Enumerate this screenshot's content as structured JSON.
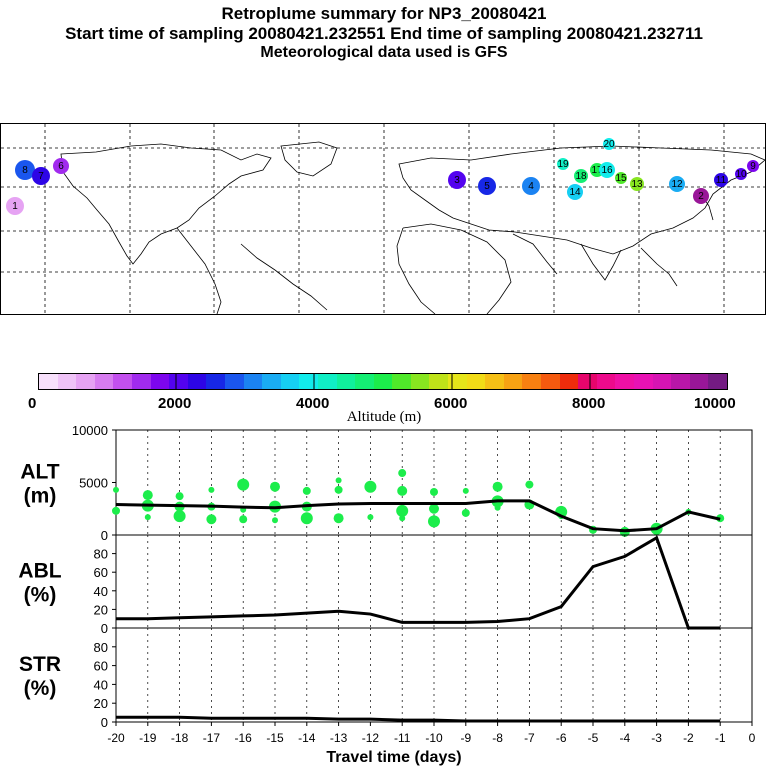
{
  "header": {
    "title": "Retroplume summary for NP3_20080421",
    "sampling": "Start time of sampling 20080421.232551     End time of sampling 20080421.232711",
    "met": "Meteorological data used is GFS"
  },
  "colorbar": {
    "colors": [
      "#f7e0fb",
      "#efc3f7",
      "#e6a3f3",
      "#d77cf0",
      "#c350ee",
      "#a12bee",
      "#7d06ee",
      "#5303ef",
      "#2d05e6",
      "#1727e6",
      "#1a56ee",
      "#1b83f2",
      "#1aacf3",
      "#16cff3",
      "#12ecec",
      "#10efc5",
      "#10f09c",
      "#14ef74",
      "#1ced4b",
      "#50e92a",
      "#88e620",
      "#bfe319",
      "#e6e61a",
      "#f2dc17",
      "#f6c016",
      "#f7a213",
      "#f78011",
      "#f55a0f",
      "#ef2c0c",
      "#e6056c",
      "#ed0a8c",
      "#ef10a5",
      "#e812b4",
      "#d614b3",
      "#b916a8",
      "#991698",
      "#741b83"
    ],
    "labels": [
      "0",
      "2000",
      "4000",
      "6000",
      "8000",
      "10000"
    ],
    "title": "Altitude (m)"
  },
  "map": {
    "markers": [
      {
        "label": "20"
      },
      {
        "label": "19"
      },
      {
        "label": "18"
      },
      {
        "label": "17"
      },
      {
        "label": "16"
      },
      {
        "label": "15"
      },
      {
        "label": "14"
      },
      {
        "label": "13"
      },
      {
        "label": "12"
      },
      {
        "label": "11"
      },
      {
        "label": "10"
      },
      {
        "label": "9"
      },
      {
        "label": "8"
      },
      {
        "label": "7"
      },
      {
        "label": "6"
      },
      {
        "label": "5"
      },
      {
        "label": "4"
      },
      {
        "label": "3"
      },
      {
        "label": "2"
      },
      {
        "label": "1"
      }
    ]
  },
  "chart_data": [
    {
      "type": "line",
      "panel": "ALT",
      "ylabel": "ALT\n(m)",
      "ylabel_line1": "ALT",
      "ylabel_line2": "(m)",
      "x": [
        -20,
        -19,
        -18,
        -17,
        -16,
        -15,
        -14,
        -13,
        -12,
        -11,
        -10,
        -9,
        -8,
        -7,
        -6,
        -5,
        -4,
        -3,
        -2,
        -1
      ],
      "values": [
        2900,
        2850,
        2800,
        2750,
        2650,
        2600,
        2800,
        2950,
        3000,
        3000,
        3000,
        3000,
        3250,
        3250,
        1800,
        600,
        400,
        600,
        2200,
        1500
      ],
      "scatter": [
        {
          "x": -20,
          "y": 4300
        },
        {
          "x": -20,
          "y": 2300
        },
        {
          "x": -19,
          "y": 3800
        },
        {
          "x": -19,
          "y": 2800
        },
        {
          "x": -19,
          "y": 1700
        },
        {
          "x": -18,
          "y": 3700
        },
        {
          "x": -18,
          "y": 2700
        },
        {
          "x": -18,
          "y": 1800
        },
        {
          "x": -17,
          "y": 4300
        },
        {
          "x": -17,
          "y": 2700
        },
        {
          "x": -17,
          "y": 1500
        },
        {
          "x": -16,
          "y": 4800
        },
        {
          "x": -16,
          "y": 2400
        },
        {
          "x": -16,
          "y": 1500
        },
        {
          "x": -15,
          "y": 4600
        },
        {
          "x": -15,
          "y": 2700
        },
        {
          "x": -15,
          "y": 1400
        },
        {
          "x": -14,
          "y": 4200
        },
        {
          "x": -14,
          "y": 2700
        },
        {
          "x": -14,
          "y": 1600
        },
        {
          "x": -13,
          "y": 5200
        },
        {
          "x": -13,
          "y": 4300
        },
        {
          "x": -13,
          "y": 1600
        },
        {
          "x": -12,
          "y": 4600
        },
        {
          "x": -12,
          "y": 1700
        },
        {
          "x": -11,
          "y": 5900
        },
        {
          "x": -11,
          "y": 4200
        },
        {
          "x": -11,
          "y": 2300
        },
        {
          "x": -11,
          "y": 1600
        },
        {
          "x": -10,
          "y": 4100
        },
        {
          "x": -10,
          "y": 2500
        },
        {
          "x": -10,
          "y": 1300
        },
        {
          "x": -9,
          "y": 4200
        },
        {
          "x": -9,
          "y": 2100
        },
        {
          "x": -8,
          "y": 4600
        },
        {
          "x": -8,
          "y": 3200
        },
        {
          "x": -8,
          "y": 2600
        },
        {
          "x": -7,
          "y": 4800
        },
        {
          "x": -7,
          "y": 2900
        },
        {
          "x": -6,
          "y": 2200
        },
        {
          "x": -6,
          "y": 1800
        },
        {
          "x": -5,
          "y": 500
        },
        {
          "x": -4,
          "y": 300
        },
        {
          "x": -3,
          "y": 600
        },
        {
          "x": -2,
          "y": 2200
        },
        {
          "x": -1,
          "y": 1600
        }
      ],
      "yticks": [
        0,
        5000,
        10000
      ],
      "ylim": [
        0,
        10000
      ],
      "xlim": [
        -20,
        0
      ]
    },
    {
      "type": "line",
      "panel": "ABL",
      "ylabel_line1": "ABL",
      "ylabel_line2": "(%)",
      "x": [
        -20,
        -19,
        -18,
        -17,
        -16,
        -15,
        -14,
        -13,
        -12,
        -11,
        -10,
        -9,
        -8,
        -7,
        -6,
        -5,
        -4,
        -3,
        -2,
        -1
      ],
      "values": [
        10,
        10,
        11,
        12,
        13,
        14,
        16,
        18,
        15,
        6,
        6,
        6,
        7,
        10,
        23,
        66,
        77,
        97,
        0,
        0
      ],
      "yticks": [
        0,
        20,
        40,
        60,
        80
      ],
      "ylim": [
        0,
        100
      ],
      "xlim": [
        -20,
        0
      ]
    },
    {
      "type": "line",
      "panel": "STR",
      "ylabel_line1": "STR",
      "ylabel_line2": "(%)",
      "x": [
        -20,
        -19,
        -18,
        -17,
        -16,
        -15,
        -14,
        -13,
        -12,
        -11,
        -10,
        -9,
        -8,
        -7,
        -6,
        -5,
        -4,
        -3,
        -2,
        -1
      ],
      "values": [
        5,
        5,
        5,
        4,
        4,
        4,
        4,
        3,
        3,
        2,
        2,
        1,
        1,
        1,
        1,
        1,
        1,
        1,
        1,
        1
      ],
      "yticks": [
        0,
        20,
        40,
        60,
        80
      ],
      "ylim": [
        0,
        100
      ],
      "xlim": [
        -20,
        0
      ]
    }
  ],
  "xaxis": {
    "ticks": [
      "-20",
      "-19",
      "-18",
      "-17",
      "-16",
      "-15",
      "-14",
      "-13",
      "-12",
      "-11",
      "-10",
      "-9",
      "-8",
      "-7",
      "-6",
      "-5",
      "-4",
      "-3",
      "-2",
      "-1",
      "0"
    ],
    "label": "Travel time (days)"
  }
}
